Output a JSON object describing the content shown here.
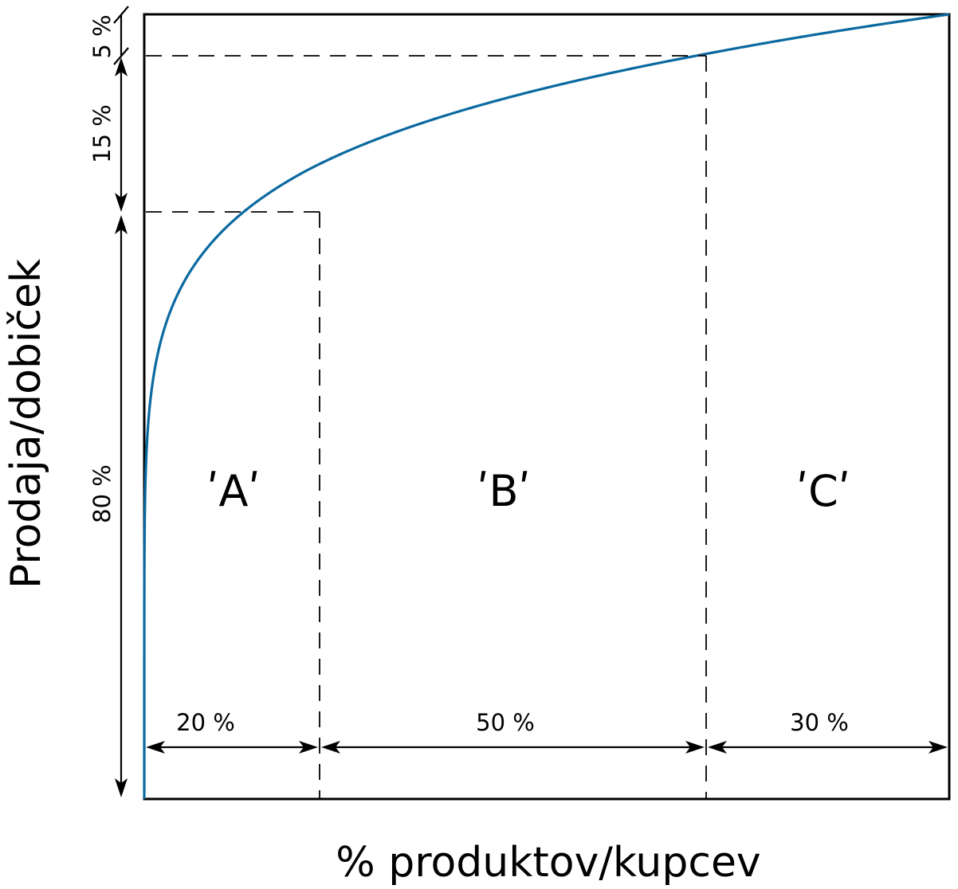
{
  "axes": {
    "x_label": "% produktov/kupcev",
    "y_label": "Prodaja/dobiček"
  },
  "classes": [
    {
      "label": "ʹAʹ",
      "share_products": "20 %",
      "share_sales": "80 %"
    },
    {
      "label": "ʹBʹ",
      "share_products": "50 %",
      "share_sales": "15 %"
    },
    {
      "label": "ʹCʹ",
      "share_products": "30 %",
      "share_sales": "5 %"
    }
  ],
  "breakpoints": {
    "x_fraction": [
      0.2,
      0.7,
      1.0
    ],
    "y_fraction": [
      0.8,
      0.95,
      1.0
    ]
  },
  "colors": {
    "curve": "#0a69a0",
    "lines": "#000000",
    "background": "#ffffff"
  }
}
